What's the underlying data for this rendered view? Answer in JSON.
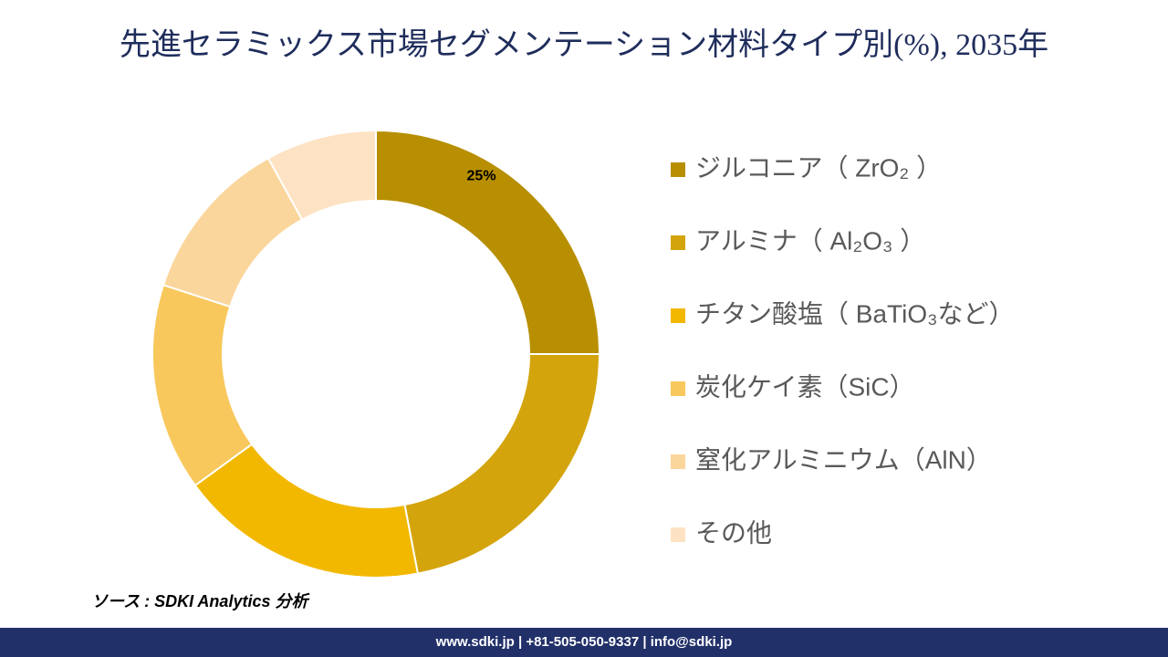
{
  "chart_data": {
    "type": "donut",
    "title": "先進セラミックス市場セグメンテーション材料タイプ別(%), 2035年",
    "categories": [
      "ジルコニア（ ZrO₂ ）",
      "アルミナ（ Al₂O₃ ）",
      "チタン酸塩（ BaTiO₃など）",
      "炭化ケイ素（SiC）",
      "窒化アルミニウム（AlN）",
      "その他"
    ],
    "values": [
      25,
      22,
      18,
      15,
      12,
      8
    ],
    "value_labels": [
      "25%",
      null,
      null,
      null,
      null,
      null
    ],
    "colors": [
      "#b78f00",
      "#d4a40c",
      "#f2b800",
      "#f8c85c",
      "#fbd69c",
      "#fde3c4"
    ],
    "source": "ソース : SDKI Analytics 分析",
    "footer": "www.sdki.jp | +81-505-050-9337 | info@sdki.jp"
  }
}
